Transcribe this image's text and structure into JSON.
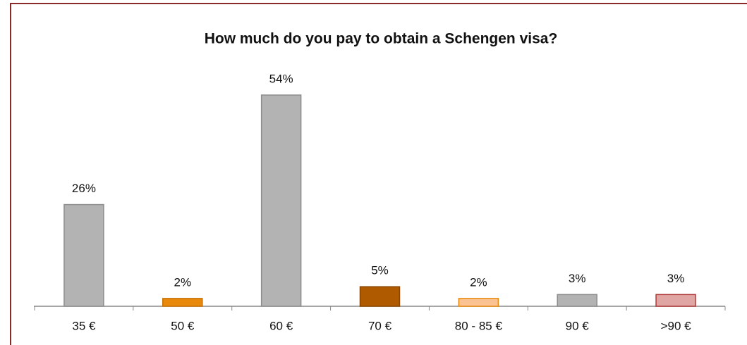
{
  "chart_data": {
    "type": "bar",
    "title": "How much do you pay to obtain a Schengen visa?",
    "categories": [
      "35 €",
      "50 €",
      "60 €",
      "70 €",
      "80 - 85 €",
      "90 €",
      ">90 €"
    ],
    "values": [
      26,
      2,
      54,
      5,
      2,
      3,
      3
    ],
    "value_labels": [
      "26%",
      "2%",
      "54%",
      "5%",
      "2%",
      "3%",
      "3%"
    ],
    "colors": [
      "#b3b3b3",
      "#e8890c",
      "#b3b3b3",
      "#b05a00",
      "#fbc294",
      "#b3b3b3",
      "#e0a6a3"
    ],
    "edge_colors": [
      "#8c8c8c",
      "#c86f00",
      "#8c8c8c",
      "#8a4500",
      "#e8890c",
      "#8c8c8c",
      "#b03a3a"
    ]
  }
}
